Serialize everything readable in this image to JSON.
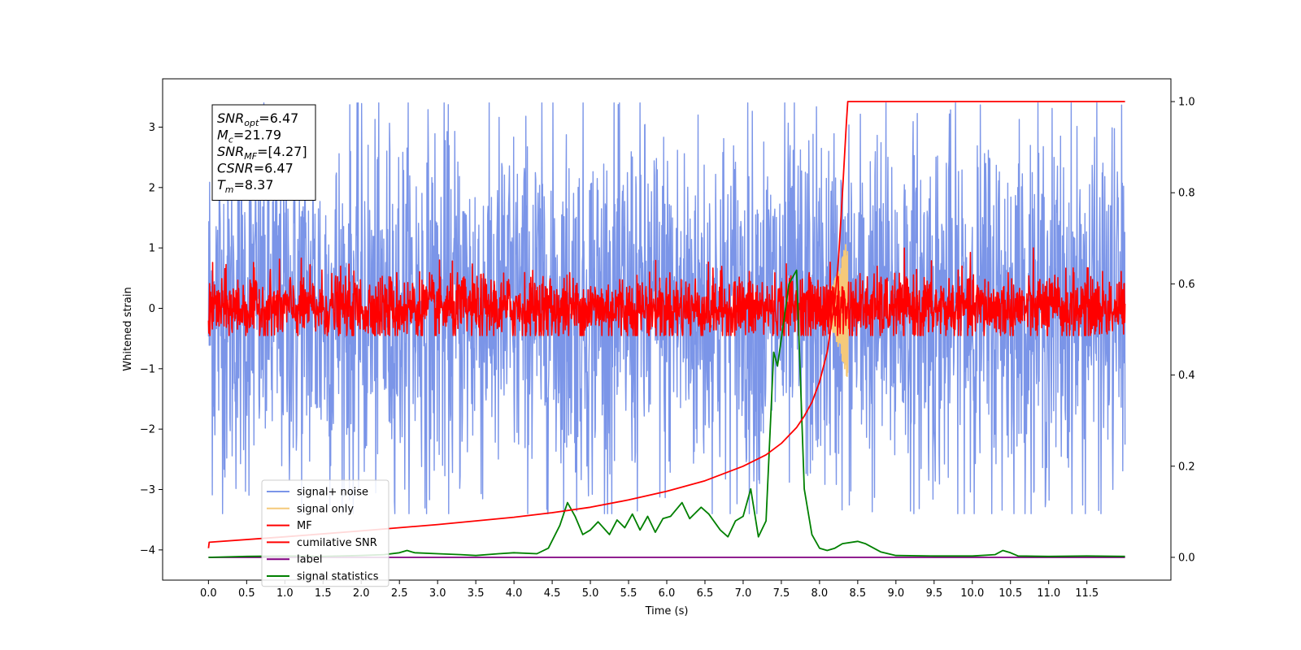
{
  "chart_data": {
    "type": "line",
    "xlabel": "Time (s)",
    "ylabel": "Whitened strain",
    "ylabel_right": "",
    "xlim": [
      -0.6,
      12.6
    ],
    "ylim": [
      -4.5,
      3.8
    ],
    "ylim_right": [
      -0.05,
      1.05
    ],
    "grid": false,
    "legend_position": "lower-left",
    "x_ticks": [
      0.0,
      0.5,
      1.0,
      1.5,
      2.0,
      2.5,
      3.0,
      3.5,
      4.0,
      4.5,
      5.0,
      5.5,
      6.0,
      6.5,
      7.0,
      7.5,
      8.0,
      8.5,
      9.0,
      9.5,
      10.0,
      10.5,
      11.0,
      11.5
    ],
    "x_tick_labels": [
      "0.0",
      "0.5",
      "1.0",
      "1.5",
      "2.0",
      "2.5",
      "3.0",
      "3.5",
      "4.0",
      "4.5",
      "5.0",
      "5.5",
      "6.0",
      "6.5",
      "7.0",
      "7.5",
      "8.0",
      "8.5",
      "9.0",
      "9.5",
      "10.0",
      "10.5",
      "11.0",
      "11.5"
    ],
    "y_ticks": [
      -4,
      -3,
      -2,
      -1,
      0,
      1,
      2,
      3
    ],
    "y_tick_labels": [
      "−4",
      "−3",
      "−2",
      "−1",
      "0",
      "1",
      "2",
      "3"
    ],
    "y_right_ticks": [
      0.0,
      0.2,
      0.4,
      0.6,
      0.8,
      1.0
    ],
    "y_right_tick_labels": [
      "0.0",
      "0.2",
      "0.4",
      "0.6",
      "0.8",
      "1.0"
    ],
    "annotation": {
      "lines": [
        {
          "sym": "SNR",
          "sub": "opt",
          "value": "=6.47"
        },
        {
          "sym": "M",
          "sub": "c",
          "value": "=21.79"
        },
        {
          "sym": "SNR",
          "sub": "MF",
          "value": "=[4.27]"
        },
        {
          "sym": "CSNR",
          "sub": "",
          "value": "=6.47"
        },
        {
          "sym": "T",
          "sub": "m",
          "value": "=8.37"
        }
      ]
    },
    "series": [
      {
        "name": "signal+ noise",
        "color": "#7b95e8",
        "axis": "left",
        "kind": "noise",
        "x_range": [
          0.0,
          12.0
        ],
        "envelope": [
          -3.4,
          3.4
        ],
        "typical_amplitude": 1.5
      },
      {
        "name": "signal only",
        "color": "#f5c97a",
        "axis": "left",
        "kind": "chirp",
        "x_range": [
          8.0,
          8.37
        ],
        "peak_amplitude": 1.2
      },
      {
        "name": "MF",
        "color": "#ff0000",
        "axis": "left",
        "kind": "noise",
        "x_range": [
          0.0,
          12.0
        ],
        "envelope": [
          -0.45,
          1.0
        ],
        "typical_amplitude": 0.28
      },
      {
        "name": "cumilative SNR",
        "color": "#ff0000",
        "axis": "right",
        "x": [
          0.0,
          0.01,
          1.0,
          2.0,
          3.0,
          4.0,
          4.5,
          5.0,
          5.5,
          6.0,
          6.5,
          7.0,
          7.3,
          7.5,
          7.7,
          7.8,
          7.9,
          8.0,
          8.1,
          8.2,
          8.25,
          8.3,
          8.35,
          8.37,
          9.0,
          10.0,
          11.0,
          12.0
        ],
        "y": [
          0.02,
          0.033,
          0.045,
          0.058,
          0.072,
          0.088,
          0.098,
          0.11,
          0.126,
          0.145,
          0.168,
          0.2,
          0.225,
          0.25,
          0.285,
          0.31,
          0.34,
          0.385,
          0.45,
          0.56,
          0.66,
          0.8,
          0.95,
          1.0,
          1.0,
          1.0,
          1.0,
          1.0
        ]
      },
      {
        "name": "label",
        "color": "#800080",
        "axis": "right",
        "x": [
          0.0,
          12.0
        ],
        "y": [
          0.0,
          0.0
        ]
      },
      {
        "name": "signal statistics",
        "color": "#008000",
        "axis": "right",
        "x": [
          0.0,
          0.5,
          1.0,
          1.5,
          2.0,
          2.3,
          2.5,
          2.6,
          2.7,
          3.0,
          3.3,
          3.5,
          3.8,
          4.0,
          4.3,
          4.45,
          4.6,
          4.7,
          4.8,
          4.9,
          5.0,
          5.1,
          5.25,
          5.35,
          5.45,
          5.55,
          5.65,
          5.75,
          5.85,
          5.95,
          6.05,
          6.2,
          6.3,
          6.45,
          6.55,
          6.7,
          6.8,
          6.9,
          7.0,
          7.1,
          7.2,
          7.3,
          7.4,
          7.45,
          7.6,
          7.7,
          7.8,
          7.9,
          8.0,
          8.1,
          8.2,
          8.3,
          8.5,
          8.6,
          8.8,
          9.0,
          9.5,
          10.0,
          10.3,
          10.4,
          10.5,
          10.6,
          11.0,
          11.5,
          12.0
        ],
        "y": [
          0.0,
          0.002,
          0.003,
          0.002,
          0.004,
          0.006,
          0.01,
          0.015,
          0.01,
          0.008,
          0.006,
          0.004,
          0.008,
          0.01,
          0.008,
          0.02,
          0.07,
          0.12,
          0.09,
          0.05,
          0.06,
          0.078,
          0.05,
          0.082,
          0.065,
          0.095,
          0.06,
          0.09,
          0.055,
          0.085,
          0.09,
          0.12,
          0.085,
          0.11,
          0.095,
          0.06,
          0.045,
          0.08,
          0.09,
          0.15,
          0.045,
          0.08,
          0.45,
          0.42,
          0.6,
          0.63,
          0.15,
          0.05,
          0.02,
          0.015,
          0.02,
          0.03,
          0.035,
          0.03,
          0.012,
          0.004,
          0.003,
          0.003,
          0.006,
          0.015,
          0.01,
          0.003,
          0.002,
          0.003,
          0.002
        ]
      }
    ]
  }
}
